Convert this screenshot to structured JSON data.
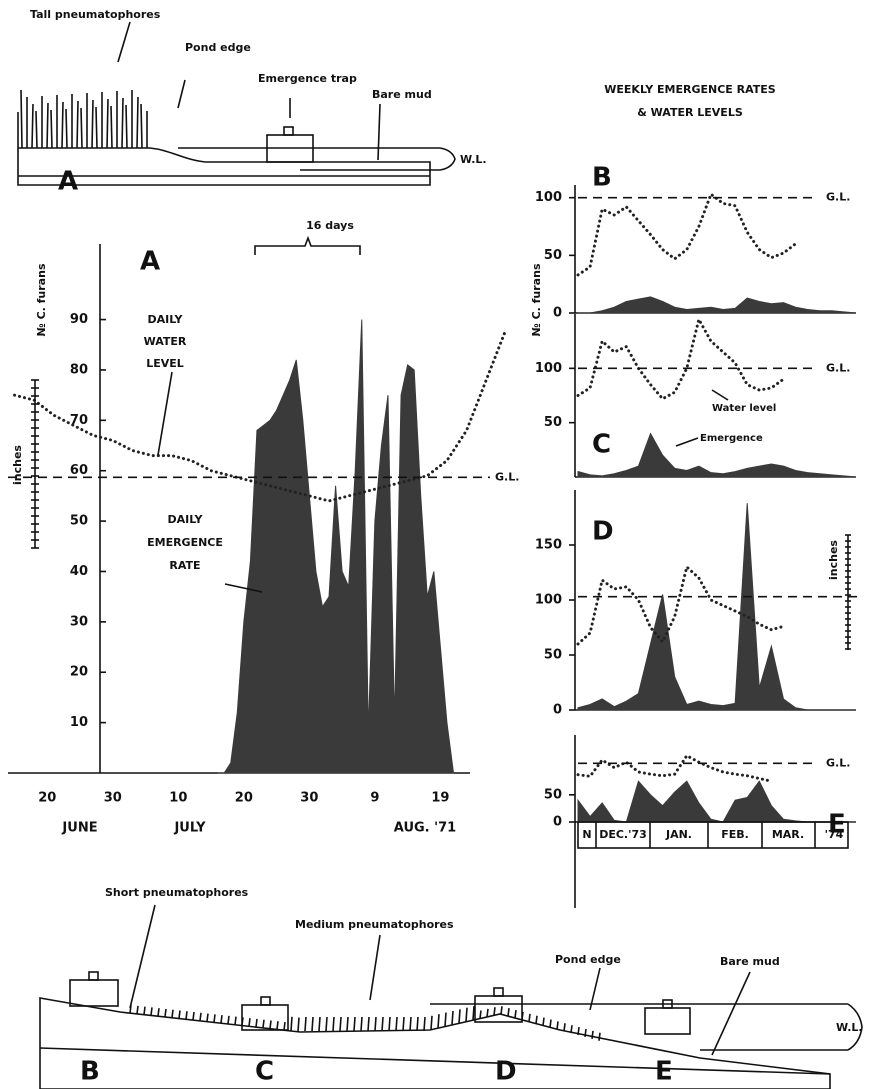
{
  "header": {
    "title": [
      "WEEKLY EMERGENCE RATES",
      "& WATER LEVELS"
    ]
  },
  "diagram_top": {
    "panel": "A",
    "labels": [
      "Tall pneumatophores",
      "Pond edge",
      "Emergence trap",
      "Bare mud"
    ],
    "wl": "W.L."
  },
  "diagram_bottom": {
    "labels": [
      "Short pneumatophores",
      "Medium pneumatophores",
      "Pond edge",
      "Bare mud"
    ],
    "wl": "W.L.",
    "panels": [
      "B",
      "C",
      "D",
      "E"
    ]
  },
  "chart_data": [
    {
      "type": "area",
      "panel": "A",
      "ylabel": "№ C. furans",
      "y2label": "inches",
      "xlim": [
        14,
        92
      ],
      "ylim": [
        0,
        105
      ],
      "xticks": [
        {
          "value": 20,
          "label": "20"
        },
        {
          "value": 30,
          "label": "30"
        },
        {
          "value": 40,
          "label": "10"
        },
        {
          "value": 50,
          "label": "20"
        },
        {
          "value": 60,
          "label": "30"
        },
        {
          "value": 70,
          "label": "9"
        },
        {
          "value": 80,
          "label": "19"
        }
      ],
      "x_months": [
        "JUNE",
        "JULY",
        "AUG. '71"
      ],
      "yticks": [
        10,
        20,
        30,
        40,
        50,
        60,
        70,
        80,
        90
      ],
      "annotation": "16 days",
      "gl": {
        "value": 58.7,
        "label": "G.L."
      },
      "series": [
        {
          "name": "DAILY EMERGENCE RATE",
          "color": "#3a3a3a",
          "style": "area",
          "x": [
            46,
            47,
            48,
            49,
            50,
            51,
            52,
            53,
            54,
            55,
            56,
            57,
            58,
            59,
            60,
            61,
            62,
            63,
            64,
            65,
            66,
            67,
            68,
            69,
            70,
            71,
            72,
            73,
            74,
            75,
            76,
            77,
            78,
            79,
            80,
            81,
            82
          ],
          "values": [
            0,
            0,
            2,
            12,
            30,
            42,
            68,
            69,
            70,
            72,
            75,
            78,
            82,
            70,
            55,
            40,
            33,
            35,
            57,
            40,
            37,
            60,
            90,
            8,
            50,
            65,
            75,
            10,
            75,
            81,
            80,
            55,
            35,
            40,
            25,
            10,
            0
          ]
        },
        {
          "name": "DAILY WATER LEVEL",
          "color": "#222",
          "style": "dotted",
          "x": [
            15,
            18,
            21,
            24,
            27,
            30,
            33,
            36,
            39,
            42,
            45,
            48,
            51,
            54,
            57,
            60,
            63,
            66,
            69,
            72,
            75,
            78,
            81,
            84,
            87,
            90
          ],
          "values": [
            75,
            74,
            71,
            69,
            67,
            66,
            64,
            63,
            63,
            62,
            60,
            59,
            58,
            57,
            56,
            55,
            54,
            55,
            56,
            57,
            58,
            59,
            62,
            68,
            78,
            88
          ]
        }
      ]
    },
    {
      "type": "area",
      "panel": "B",
      "ylabel": "№ C. furans",
      "ylim": [
        0,
        111
      ],
      "yticks": [
        0,
        50,
        100
      ],
      "gl": {
        "value": 100,
        "label": "G.L."
      },
      "categories": [
        null,
        null,
        null,
        null,
        null,
        null,
        null,
        null,
        null,
        null,
        null,
        null,
        null,
        null,
        null,
        null,
        null,
        null,
        null,
        null,
        null,
        null,
        null,
        null
      ],
      "series": [
        {
          "color": "#3a3a3a",
          "style": "area",
          "values": [
            0,
            0,
            2,
            5,
            10,
            12,
            14,
            10,
            5,
            3,
            4,
            5,
            3,
            4,
            13,
            10,
            8,
            9,
            5,
            3,
            2,
            2,
            1,
            0
          ]
        },
        {
          "color": "#222",
          "style": "dotted",
          "values": [
            33,
            40,
            90,
            85,
            92,
            80,
            68,
            55,
            47,
            55,
            75,
            103,
            95,
            93,
            70,
            55,
            48,
            52,
            60,
            null,
            null,
            null,
            null,
            null
          ]
        }
      ]
    },
    {
      "type": "area",
      "panel": "C",
      "ylim": [
        0,
        150
      ],
      "yticks": [
        50,
        100
      ],
      "gl": {
        "value": 100,
        "label": "G.L."
      },
      "categories": [
        null,
        null,
        null,
        null,
        null,
        null,
        null,
        null,
        null,
        null,
        null,
        null,
        null,
        null,
        null,
        null,
        null,
        null,
        null,
        null,
        null,
        null,
        null,
        null
      ],
      "series": [
        {
          "name": "Emergence",
          "color": "#3a3a3a",
          "style": "area",
          "values": [
            5,
            2,
            1,
            3,
            6,
            10,
            40,
            20,
            8,
            6,
            10,
            4,
            3,
            5,
            8,
            10,
            12,
            10,
            6,
            4,
            3,
            2,
            1,
            0
          ]
        },
        {
          "name": "Water level",
          "color": "#222",
          "style": "dotted",
          "values": [
            75,
            82,
            125,
            115,
            120,
            100,
            85,
            72,
            78,
            100,
            145,
            125,
            115,
            105,
            85,
            80,
            82,
            90,
            null,
            null,
            null,
            null,
            null,
            null
          ]
        }
      ]
    },
    {
      "type": "area",
      "panel": "D",
      "y2label": "inches",
      "ylim": [
        0,
        200
      ],
      "yticks": [
        0,
        50,
        100,
        150
      ],
      "gl": {
        "value": 103
      },
      "categories": [
        null,
        null,
        null,
        null,
        null,
        null,
        null,
        null,
        null,
        null,
        null,
        null,
        null,
        null,
        null,
        null,
        null,
        null,
        null,
        null,
        null,
        null,
        null,
        null
      ],
      "series": [
        {
          "color": "#3a3a3a",
          "style": "area",
          "values": [
            2,
            5,
            10,
            3,
            8,
            15,
            60,
            105,
            30,
            5,
            8,
            5,
            4,
            6,
            188,
            20,
            58,
            10,
            2,
            0,
            0,
            0,
            0,
            0
          ]
        },
        {
          "color": "#222",
          "style": "dotted",
          "values": [
            60,
            70,
            118,
            110,
            112,
            100,
            75,
            62,
            85,
            130,
            120,
            100,
            95,
            90,
            85,
            78,
            73,
            76,
            null,
            null,
            null,
            null,
            null,
            null
          ]
        }
      ]
    },
    {
      "type": "area",
      "panel": "E",
      "ylim": [
        0,
        160
      ],
      "yticks": [
        0,
        50
      ],
      "gl": {
        "value": 108,
        "label": "G.L."
      },
      "x_labels": [
        "N",
        "DEC.'73",
        "JAN.",
        "FEB.",
        "MAR.",
        "'74"
      ],
      "categories": [
        null,
        null,
        null,
        null,
        null,
        null,
        null,
        null,
        null,
        null,
        null,
        null,
        null,
        null,
        null,
        null,
        null,
        null,
        null,
        null,
        null,
        null,
        null,
        null
      ],
      "series": [
        {
          "color": "#3a3a3a",
          "style": "area",
          "values": [
            40,
            10,
            35,
            3,
            0,
            75,
            50,
            30,
            55,
            75,
            35,
            5,
            0,
            40,
            45,
            75,
            30,
            5,
            2,
            0,
            0,
            0,
            0,
            0
          ]
        },
        {
          "color": "#222",
          "style": "dotted",
          "values": [
            87,
            84,
            114,
            100,
            110,
            92,
            88,
            85,
            88,
            122,
            110,
            100,
            92,
            88,
            85,
            80,
            75,
            null,
            null,
            null,
            null,
            null,
            null,
            null
          ]
        }
      ]
    }
  ]
}
